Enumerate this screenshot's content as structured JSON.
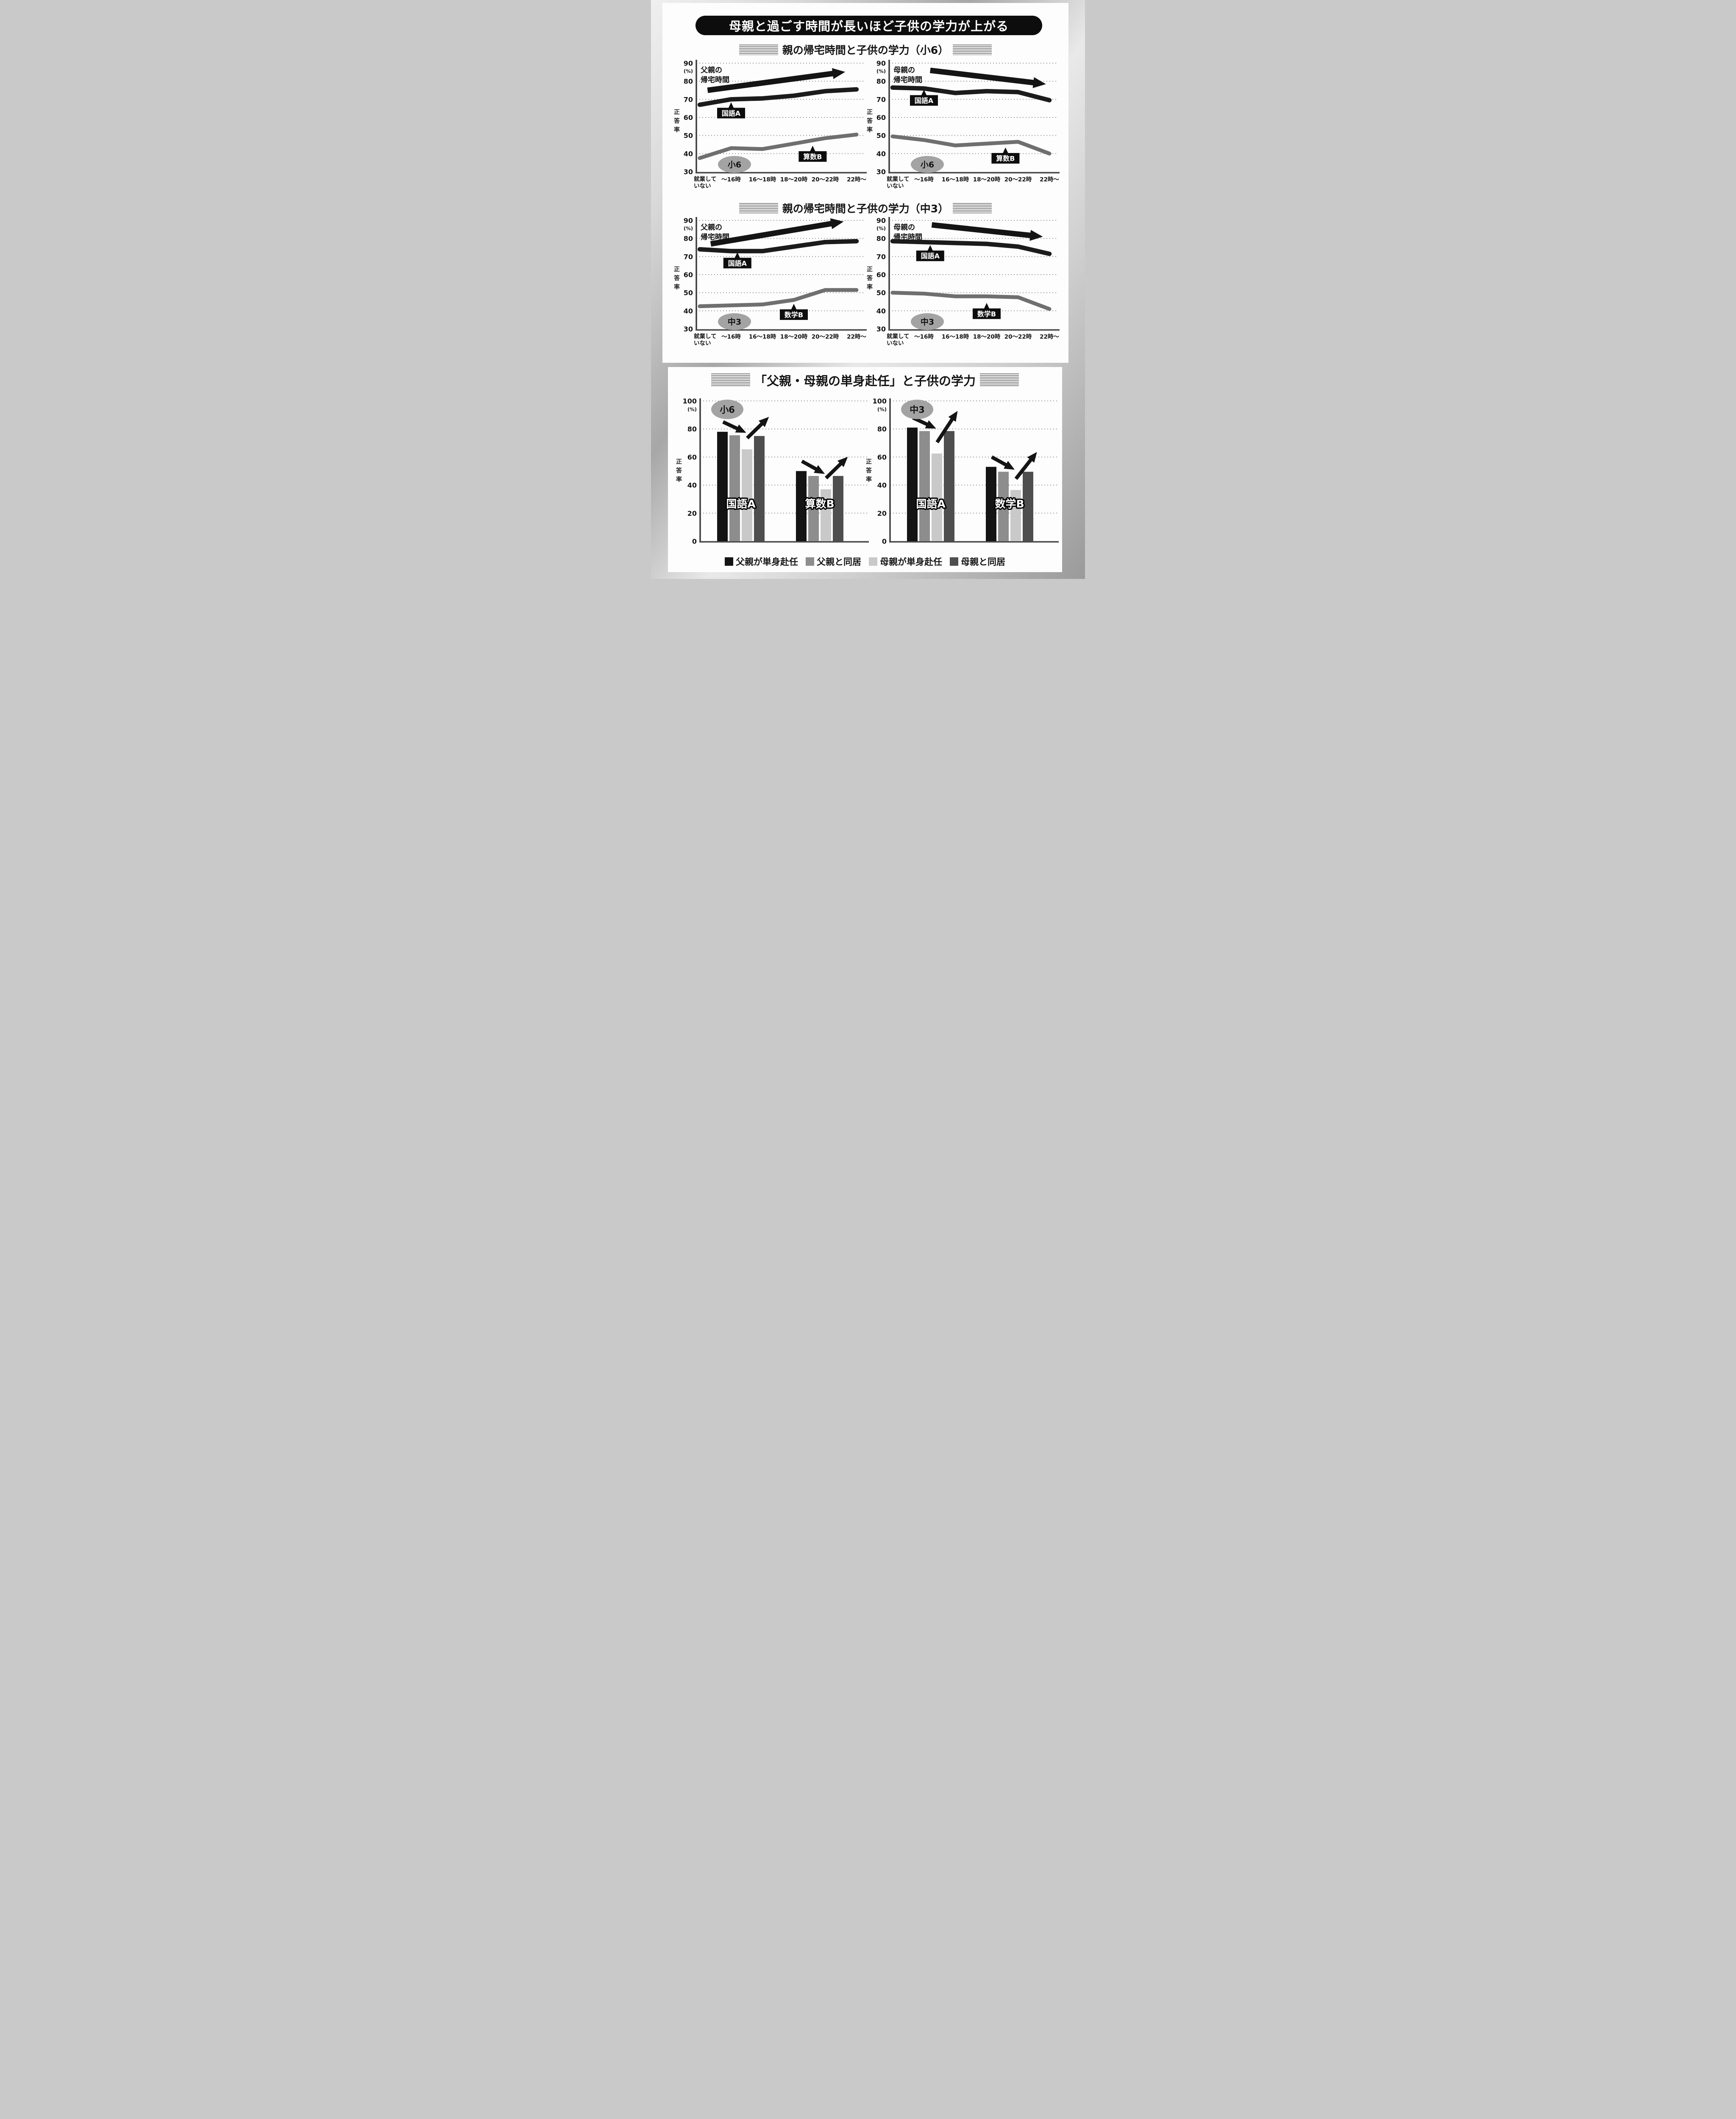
{
  "page": {
    "main_title": "母親と過ごす時間が長いほど子供の学力が上がる",
    "sections": {
      "line_s6_header": "親の帰宅時間と子供の学力（小6）",
      "line_c3_header": "親の帰宅時間と子供の学力（中3）",
      "bar_header": "「父親・母親の単身赴任」と子供の学力"
    },
    "legend": [
      {
        "label": "父親が単身赴任",
        "color": "#141414"
      },
      {
        "label": "父親と同居",
        "color": "#8d8d8d"
      },
      {
        "label": "母親が単身赴任",
        "color": "#c9c9c9"
      },
      {
        "label": "母親と同居",
        "color": "#4e4e4e"
      }
    ]
  },
  "chart_data": [
    {
      "id": "line_s6_father",
      "type": "line",
      "title": "親の帰宅時間と子供の学力（小6）",
      "arrow_label": "父親の\n帰宅時間",
      "grade_badge": "小6",
      "ylabel": "正答率",
      "y_unit": "(%)",
      "ylim": [
        30,
        90
      ],
      "yticks": [
        90,
        80,
        70,
        60,
        50,
        40,
        30
      ],
      "x_categories": [
        "就業して\nいない",
        "～16時",
        "16～18時",
        "18～20時",
        "20～22時",
        "22時～"
      ],
      "grid": "dotted",
      "series": [
        {
          "name": "国語A",
          "color": "#1b1b1b",
          "values": [
            67,
            70,
            70.5,
            72,
            74.5,
            75.5
          ],
          "label_pos": {
            "x": 1,
            "y": 62.5
          }
        },
        {
          "name": "算数B",
          "color": "#6f6f6f",
          "values": [
            37.5,
            43,
            42.5,
            45.5,
            48.5,
            50.5
          ],
          "label_pos": {
            "x": 3.6,
            "y": 38.5
          }
        }
      ],
      "trend_arrow": {
        "x1": 0.25,
        "y1": 75,
        "x2": 4.35,
        "y2": 84.5
      }
    },
    {
      "id": "line_s6_mother",
      "type": "line",
      "title": "親の帰宅時間と子供の学力（小6）",
      "arrow_label": "母親の\n帰宅時間",
      "grade_badge": "小6",
      "ylabel": "正答率",
      "y_unit": "(%)",
      "ylim": [
        30,
        90
      ],
      "yticks": [
        90,
        80,
        70,
        60,
        50,
        40,
        30
      ],
      "x_categories": [
        "就業して\nいない",
        "～16時",
        "16～18時",
        "18～20時",
        "20～22時",
        "22時～"
      ],
      "grid": "dotted",
      "series": [
        {
          "name": "国語A",
          "color": "#1b1b1b",
          "values": [
            76.5,
            76,
            73.5,
            74.5,
            74,
            69.5
          ],
          "label_pos": {
            "x": 1,
            "y": 69.5
          }
        },
        {
          "name": "算数B",
          "color": "#6f6f6f",
          "values": [
            49.5,
            47.5,
            44.5,
            45.5,
            46.5,
            40
          ],
          "label_pos": {
            "x": 3.6,
            "y": 37.5
          }
        }
      ],
      "trend_arrow": {
        "x1": 1.2,
        "y1": 86,
        "x2": 4.6,
        "y2": 79
      }
    },
    {
      "id": "line_c3_father",
      "type": "line",
      "title": "親の帰宅時間と子供の学力（中3）",
      "arrow_label": "父親の\n帰宅時間",
      "grade_badge": "中3",
      "ylabel": "正答率",
      "y_unit": "(%)",
      "ylim": [
        30,
        90
      ],
      "yticks": [
        90,
        80,
        70,
        60,
        50,
        40,
        30
      ],
      "x_categories": [
        "就業して\nいない",
        "～16時",
        "16～18時",
        "18～20時",
        "20～22時",
        "22時～"
      ],
      "grid": "dotted",
      "series": [
        {
          "name": "国語A",
          "color": "#1b1b1b",
          "values": [
            74,
            73,
            73,
            75.5,
            78,
            78.5
          ],
          "label_pos": {
            "x": 1.2,
            "y": 66.5
          }
        },
        {
          "name": "数学B",
          "color": "#6f6f6f",
          "values": [
            42.5,
            43,
            43.5,
            46,
            51.5,
            51.5
          ],
          "label_pos": {
            "x": 3,
            "y": 38
          }
        }
      ],
      "trend_arrow": {
        "x1": 0.35,
        "y1": 77,
        "x2": 4.3,
        "y2": 88.5
      }
    },
    {
      "id": "line_c3_mother",
      "type": "line",
      "title": "親の帰宅時間と子供の学力（中3）",
      "arrow_label": "母親の\n帰宅時間",
      "grade_badge": "中3",
      "ylabel": "正答率",
      "y_unit": "(%)",
      "ylim": [
        30,
        90
      ],
      "yticks": [
        90,
        80,
        70,
        60,
        50,
        40,
        30
      ],
      "x_categories": [
        "就業して\nいない",
        "～16時",
        "16～18時",
        "18～20時",
        "20～22時",
        "22時～"
      ],
      "grid": "dotted",
      "series": [
        {
          "name": "国語A",
          "color": "#1b1b1b",
          "values": [
            78.5,
            78,
            77.5,
            77,
            75.5,
            71.5
          ],
          "label_pos": {
            "x": 1.2,
            "y": 70.5
          }
        },
        {
          "name": "数学B",
          "color": "#6f6f6f",
          "values": [
            50,
            49.5,
            48,
            48,
            47.5,
            41
          ],
          "label_pos": {
            "x": 3,
            "y": 38.5
          }
        }
      ],
      "trend_arrow": {
        "x1": 1.25,
        "y1": 87.5,
        "x2": 4.5,
        "y2": 81.5
      }
    },
    {
      "id": "bar_s6",
      "type": "bar",
      "title": "「父親・母親の単身赴任」と子供の学力",
      "grade_badge": "小6",
      "ylabel": "正答率",
      "y_unit": "(%)",
      "ylim": [
        0,
        100
      ],
      "yticks": [
        100,
        80,
        60,
        40,
        20,
        0
      ],
      "grid": "dotted",
      "categories": [
        "国語A",
        "算数B"
      ],
      "series": [
        {
          "name": "父親が単身赴任",
          "color": "#141414",
          "values": [
            78,
            50
          ]
        },
        {
          "name": "父親と同居",
          "color": "#8d8d8d",
          "values": [
            75.5,
            46.5
          ]
        },
        {
          "name": "母親が単身赴任",
          "color": "#c9c9c9",
          "values": [
            65.5,
            37
          ]
        },
        {
          "name": "母親と同居",
          "color": "#4e4e4e",
          "values": [
            75,
            46.5
          ]
        }
      ],
      "trend_arrows": [
        {
          "group": 0,
          "kind": "down"
        },
        {
          "group": 0,
          "kind": "up"
        },
        {
          "group": 1,
          "kind": "down"
        },
        {
          "group": 1,
          "kind": "up"
        }
      ]
    },
    {
      "id": "bar_c3",
      "type": "bar",
      "title": "「父親・母親の単身赴任」と子供の学力",
      "grade_badge": "中3",
      "ylabel": "正答率",
      "y_unit": "(%)",
      "ylim": [
        0,
        100
      ],
      "yticks": [
        100,
        80,
        60,
        40,
        20,
        0
      ],
      "grid": "dotted",
      "categories": [
        "国語A",
        "数学B"
      ],
      "series": [
        {
          "name": "父親が単身赴任",
          "color": "#141414",
          "values": [
            81,
            53
          ]
        },
        {
          "name": "父親と同居",
          "color": "#8d8d8d",
          "values": [
            78.5,
            49.5
          ]
        },
        {
          "name": "母親が単身赴任",
          "color": "#c9c9c9",
          "values": [
            62.5,
            36.5
          ]
        },
        {
          "name": "母親と同居",
          "color": "#4e4e4e",
          "values": [
            78.5,
            49.5
          ]
        }
      ],
      "trend_arrows": [
        {
          "group": 0,
          "kind": "down"
        },
        {
          "group": 0,
          "kind": "up"
        },
        {
          "group": 1,
          "kind": "down"
        },
        {
          "group": 1,
          "kind": "up"
        }
      ]
    }
  ]
}
